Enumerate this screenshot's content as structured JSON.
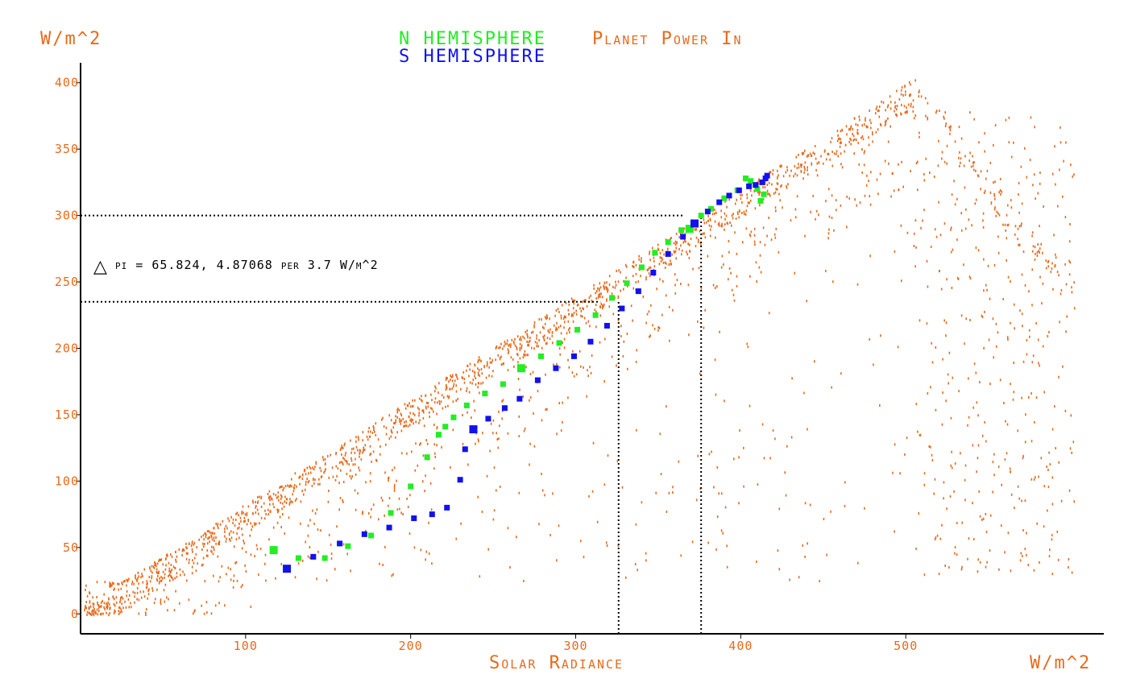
{
  "chart_data": {
    "type": "scatter",
    "title_n": "N HEMISPHERE",
    "title_s": "S HEMISPHERE",
    "title_main": "Planet Power In",
    "ylabel": "W/m^2",
    "xlabel": "Solar Radiance",
    "xunit": "W/m^2",
    "xlim": [
      0,
      620
    ],
    "ylim": [
      -15,
      415
    ],
    "x_ticks": [
      100,
      200,
      300,
      400,
      500
    ],
    "y_ticks": [
      0,
      50,
      100,
      150,
      200,
      250,
      300,
      350,
      400
    ],
    "annotation": "pi = 65.824, 4.87068 per 3.7 W/m^2",
    "annotation_symbol": "△",
    "reference_lines": {
      "h": [
        {
          "y": 300,
          "x_end": 365
        },
        {
          "y": 235,
          "x_end": 315
        }
      ],
      "v": [
        {
          "x": 326,
          "y_end": 235
        },
        {
          "x": 376,
          "y_end": 300
        }
      ]
    },
    "colors": {
      "background_points": "#e86a1a",
      "n_hemisphere": "#22ee22",
      "s_hemisphere": "#1111ee",
      "axis": "#000000",
      "reference_line": "#000000"
    },
    "series": [
      {
        "name": "N HEMISPHERE",
        "points": [
          [
            117,
            48
          ],
          [
            132,
            42
          ],
          [
            148,
            42
          ],
          [
            162,
            51
          ],
          [
            176,
            59
          ],
          [
            188,
            76
          ],
          [
            200,
            96
          ],
          [
            210,
            118
          ],
          [
            217,
            135
          ],
          [
            221,
            141
          ],
          [
            226,
            148
          ],
          [
            234,
            157
          ],
          [
            245,
            166
          ],
          [
            256,
            173
          ],
          [
            267,
            185
          ],
          [
            279,
            194
          ],
          [
            290,
            204
          ],
          [
            301,
            214
          ],
          [
            312,
            225
          ],
          [
            322,
            238
          ],
          [
            331,
            249
          ],
          [
            340,
            261
          ],
          [
            348,
            272
          ],
          [
            356,
            280
          ],
          [
            364,
            289
          ],
          [
            369,
            290
          ],
          [
            376,
            300
          ],
          [
            382,
            305
          ],
          [
            390,
            313
          ],
          [
            398,
            319
          ],
          [
            403,
            328
          ],
          [
            406,
            326
          ],
          [
            410,
            320
          ],
          [
            412,
            311
          ],
          [
            414,
            316
          ]
        ]
      },
      {
        "name": "S HEMISPHERE",
        "points": [
          [
            125,
            34
          ],
          [
            141,
            43
          ],
          [
            157,
            53
          ],
          [
            172,
            60
          ],
          [
            187,
            65
          ],
          [
            202,
            72
          ],
          [
            213,
            75
          ],
          [
            222,
            80
          ],
          [
            230,
            101
          ],
          [
            233,
            124
          ],
          [
            238,
            139
          ],
          [
            247,
            147
          ],
          [
            257,
            155
          ],
          [
            266,
            162
          ],
          [
            277,
            176
          ],
          [
            288,
            185
          ],
          [
            299,
            194
          ],
          [
            309,
            205
          ],
          [
            319,
            217
          ],
          [
            328,
            230
          ],
          [
            338,
            243
          ],
          [
            347,
            257
          ],
          [
            356,
            271
          ],
          [
            365,
            284
          ],
          [
            372,
            294
          ],
          [
            380,
            303
          ],
          [
            387,
            310
          ],
          [
            393,
            315
          ],
          [
            399,
            319
          ],
          [
            405,
            322
          ],
          [
            409,
            323
          ],
          [
            413,
            325
          ],
          [
            415,
            328
          ],
          [
            416,
            330
          ]
        ]
      }
    ]
  }
}
